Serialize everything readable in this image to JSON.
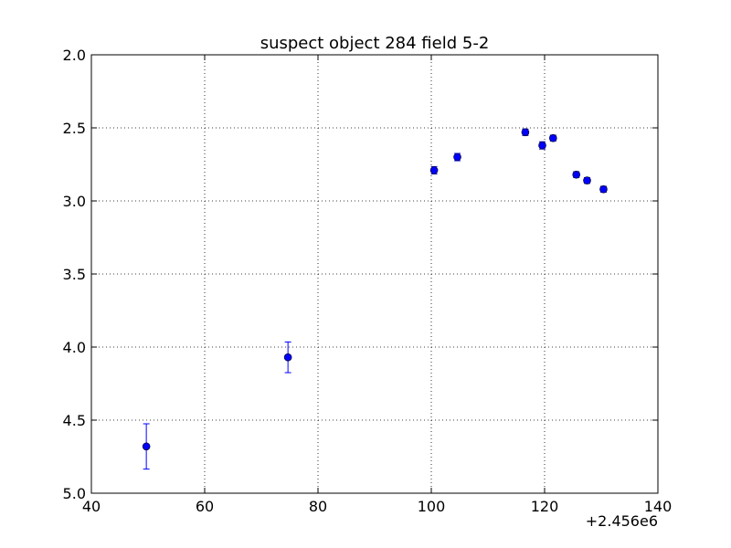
{
  "chart_data": {
    "type": "scatter",
    "title": "suspect object 284 field 5-2",
    "xlabel": "",
    "ylabel": "",
    "x_offset_label": "+2.456e6",
    "xlim": [
      40,
      140
    ],
    "ylim": [
      2.0,
      5.0
    ],
    "y_inverted": true,
    "grid": true,
    "x_ticks": [
      40,
      60,
      80,
      100,
      120,
      140
    ],
    "x_tick_labels": [
      "40",
      "60",
      "80",
      "100",
      "120",
      "140"
    ],
    "y_ticks": [
      2.0,
      2.5,
      3.0,
      3.5,
      4.0,
      4.5,
      5.0
    ],
    "y_tick_labels": [
      "2.0",
      "2.5",
      "3.0",
      "3.5",
      "4.0",
      "4.5",
      "5.0"
    ],
    "marker_color": "#0000ff",
    "series": [
      {
        "points": [
          {
            "x": 49.7,
            "y": 4.68,
            "err": 0.155
          },
          {
            "x": 74.7,
            "y": 4.07,
            "err": 0.105
          },
          {
            "x": 100.5,
            "y": 2.79,
            "err": 0.025
          },
          {
            "x": 104.6,
            "y": 2.7,
            "err": 0.025
          },
          {
            "x": 116.6,
            "y": 2.53,
            "err": 0.022
          },
          {
            "x": 119.6,
            "y": 2.62,
            "err": 0.025
          },
          {
            "x": 121.5,
            "y": 2.57,
            "err": 0.02
          },
          {
            "x": 125.6,
            "y": 2.82,
            "err": 0.02
          },
          {
            "x": 127.5,
            "y": 2.86,
            "err": 0.02
          },
          {
            "x": 130.4,
            "y": 2.92,
            "err": 0.02
          }
        ]
      }
    ]
  }
}
